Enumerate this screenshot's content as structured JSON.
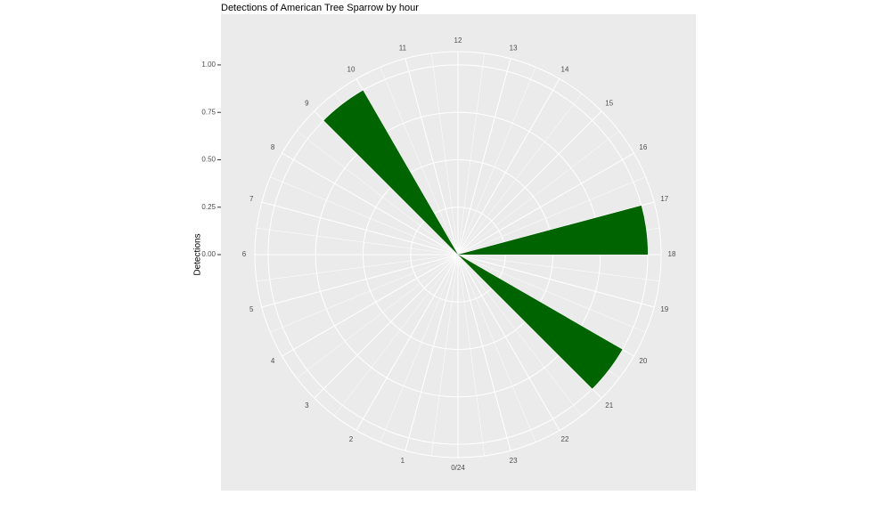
{
  "chart_data": {
    "type": "polar-bar",
    "title": "Detections of American Tree Sparrow by hour",
    "y_label": "Detections",
    "categories": [
      "0/24",
      "1",
      "2",
      "3",
      "4",
      "5",
      "6",
      "7",
      "8",
      "9",
      "10",
      "11",
      "12",
      "13",
      "14",
      "15",
      "16",
      "17",
      "18",
      "19",
      "20",
      "21",
      "22",
      "23"
    ],
    "values": [
      0,
      0,
      0,
      0,
      0,
      0,
      0,
      0,
      0,
      1,
      0,
      0,
      0,
      0,
      0,
      0,
      0,
      1,
      0,
      0,
      1,
      0,
      0,
      0
    ],
    "color": "#006400",
    "ylim": [
      0,
      1.07
    ],
    "yticks": [
      {
        "value": 0,
        "label": "0.00"
      },
      {
        "value": 0.25,
        "label": "0.25"
      },
      {
        "value": 0.5,
        "label": "0.50"
      },
      {
        "value": 0.75,
        "label": "0.75"
      },
      {
        "value": 1,
        "label": "1.00"
      }
    ],
    "grid": true
  }
}
